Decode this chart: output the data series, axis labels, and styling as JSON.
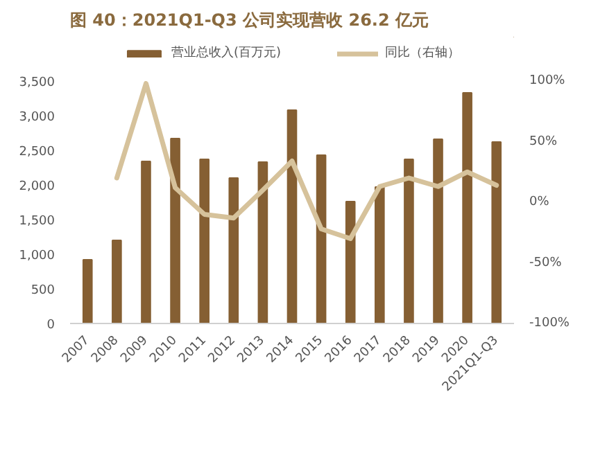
{
  "chart_data": {
    "type": "bar",
    "title": "图 40：2021Q1-Q3 公司实现营收 26.2 亿元",
    "categories": [
      "2007",
      "2008",
      "2009",
      "2010",
      "2011",
      "2012",
      "2013",
      "2014",
      "2015",
      "2016",
      "2017",
      "2018",
      "2019",
      "2020",
      "2021Q1-Q3"
    ],
    "series": [
      {
        "name": "营业总收入(百万元)",
        "color": "#855f33",
        "values": [
          920,
          1200,
          2340,
          2670,
          2370,
          2100,
          2330,
          3080,
          2430,
          1760,
          1970,
          2370,
          2660,
          3330,
          2620
        ]
      },
      {
        "name": "同比（右轴）",
        "color": "#d6c29b",
        "type": "line",
        "axis": "y2",
        "values": [
          null,
          20,
          98,
          12,
          -10,
          -13,
          10,
          34,
          -22,
          -30,
          13,
          20,
          13,
          25,
          14
        ]
      }
    ],
    "ylim": [
      0,
      3500
    ],
    "yticks": [
      0,
      500,
      {
        "value": 1000,
        "label": "1,000"
      },
      {
        "value": 1500,
        "label": "1,500"
      },
      {
        "value": 2000,
        "label": "2,000"
      },
      {
        "value": 2500,
        "label": "2,500"
      },
      {
        "value": 3000,
        "label": "3,000"
      },
      {
        "value": 3500,
        "label": "3,500"
      }
    ],
    "y2lim": [
      -100,
      100
    ],
    "y2ticks": [
      {
        "value": -100,
        "label": "-100%"
      },
      {
        "value": -50,
        "label": "-50%"
      },
      {
        "value": 0,
        "label": "0%"
      },
      {
        "value": 50,
        "label": "50%"
      },
      {
        "value": 100,
        "label": "100%"
      }
    ],
    "legend": "top",
    "grid": false,
    "line_style": "solid"
  }
}
